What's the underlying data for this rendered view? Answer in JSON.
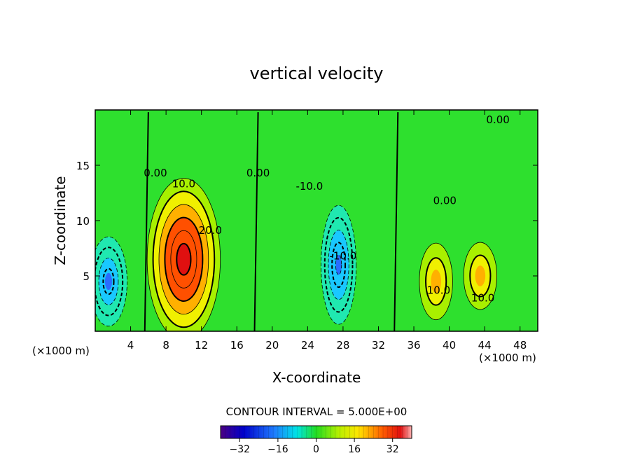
{
  "chart_data": {
    "type": "heatmap",
    "title": "vertical velocity",
    "xlabel": "X-coordinate",
    "ylabel": "Z-coordinate",
    "x_unit_label_left": "(×1000 m)",
    "x_unit_label_right": "(×1000 m)",
    "xlim": [
      0,
      50
    ],
    "ylim": [
      0,
      20
    ],
    "x_ticks": [
      4,
      8,
      12,
      16,
      20,
      24,
      28,
      32,
      36,
      40,
      44,
      48
    ],
    "y_ticks": [
      5,
      10,
      15
    ],
    "contour_interval_text": "CONTOUR INTERVAL = 5.000E+00",
    "contour_labels": [
      {
        "text": "0.00",
        "x": 6.8,
        "z": 14.0
      },
      {
        "text": "10.0",
        "x": 10.0,
        "z": 13.0
      },
      {
        "text": "20.0",
        "x": 13.0,
        "z": 8.8
      },
      {
        "text": "0.00",
        "x": 18.4,
        "z": 14.0
      },
      {
        "text": "-10.0",
        "x": 24.2,
        "z": 12.8
      },
      {
        "text": "-10.0",
        "x": 28.0,
        "z": 6.5
      },
      {
        "text": "0.00",
        "x": 39.5,
        "z": 11.5
      },
      {
        "text": "0.00",
        "x": 45.5,
        "z": 18.8
      },
      {
        "text": "10.0",
        "x": 38.8,
        "z": 3.4
      },
      {
        "text": "10.0",
        "x": 43.8,
        "z": 2.7
      }
    ],
    "features": [
      {
        "name": "updraft",
        "x": 10.0,
        "z": 6.5,
        "peak": 32
      },
      {
        "name": "downdraft",
        "x": 1.5,
        "z": 4.5,
        "peak": -22
      },
      {
        "name": "downdraft",
        "x": 27.5,
        "z": 6.0,
        "peak": -25
      },
      {
        "name": "updraft",
        "x": 38.5,
        "z": 4.5,
        "peak": 14
      },
      {
        "name": "updraft",
        "x": 43.5,
        "z": 5.0,
        "peak": 14
      }
    ],
    "colorbar": {
      "min": -40,
      "max": 40,
      "ticks": [
        "−32",
        "−16",
        "0",
        "16",
        "32"
      ],
      "tick_values": [
        -32,
        -16,
        0,
        16,
        32
      ]
    }
  }
}
